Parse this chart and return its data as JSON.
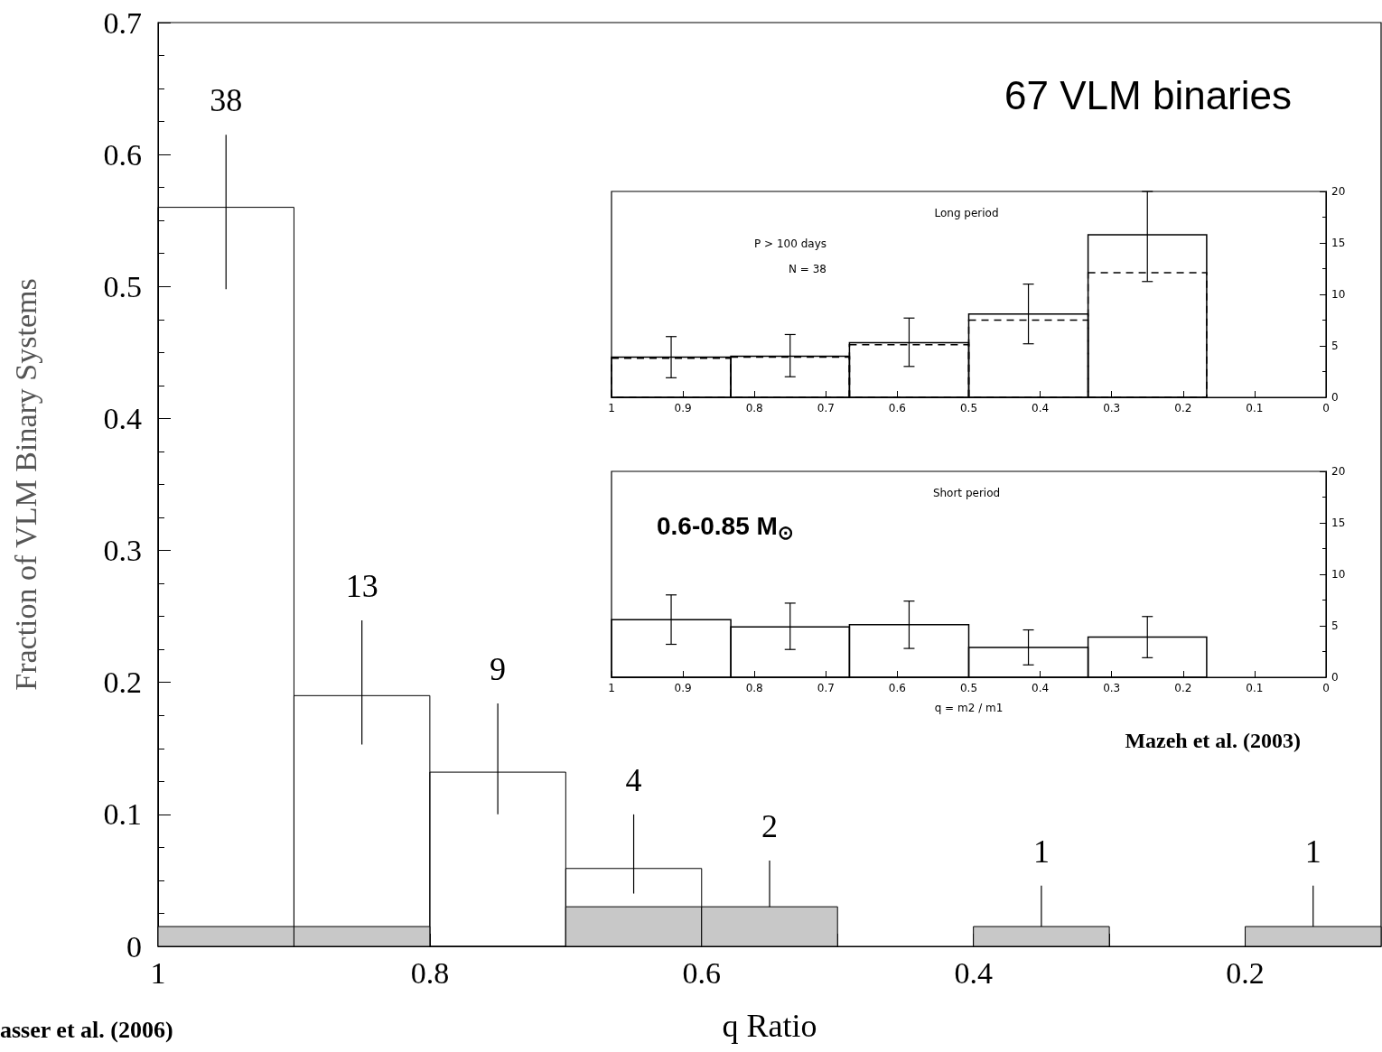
{
  "chart_data": [
    {
      "type": "histogram",
      "bins": [
        1,
        0.9,
        0.8,
        0.7,
        0.6,
        0.5,
        0.4,
        0.3,
        0.2,
        0.1
      ],
      "xlabel": "q Ratio",
      "ylabel": "Fraction of VLM Binary Systems",
      "xlim": [
        1,
        0.1
      ],
      "ylim": [
        0,
        0.7
      ],
      "xticks": [
        1,
        {
          "value": 0.9,
          "label": null
        },
        0.8,
        {
          "value": 0.7,
          "label": null
        },
        0.6,
        {
          "value": 0.5,
          "label": null
        },
        0.4,
        {
          "value": 0.3,
          "label": null
        },
        0.2
      ],
      "yticks": [
        0,
        0.1,
        0.2,
        0.3,
        0.4,
        0.5,
        0.6,
        0.7
      ],
      "annotations": [
        "67 VLM binaries",
        "asser et al. (2006)",
        {
          "text": "38",
          "x": 0.95,
          "y": 0.615
        },
        {
          "text": "13",
          "x": 0.85,
          "y": 0.247
        },
        {
          "text": "9",
          "x": 0.75,
          "y": 0.184
        },
        {
          "text": "4",
          "x": 0.65,
          "y": 0.1
        },
        {
          "text": "2",
          "x": 0.55,
          "y": 0.065
        },
        {
          "text": "1",
          "x": 0.35,
          "y": 0.046
        },
        {
          "text": "1",
          "x": 0.15,
          "y": 0.046
        }
      ],
      "series": [
        {
          "color": "#000000",
          "line_style": "solid",
          "values": [
            0.56,
            0.19,
            0.132,
            0.059,
            null,
            0,
            null,
            0,
            null
          ],
          "errors": [
            [
              0.498,
              0.615
            ],
            [
              0.153,
              0.247
            ],
            [
              0.1,
              0.184
            ],
            [
              0.04,
              0.1
            ],
            null,
            null,
            null,
            null,
            null
          ]
        },
        {
          "color": "#c8c8c8",
          "values": [
            0.015,
            0.015,
            0,
            0.03,
            0.03,
            0,
            0.015,
            0,
            0.015
          ],
          "errors": [
            null,
            null,
            null,
            null,
            [
              0.03,
              0.065
            ],
            null,
            [
              0.015,
              0.046
            ],
            null,
            [
              0.015,
              0.046
            ]
          ]
        }
      ]
    },
    {
      "type": "histogram",
      "title": "Long period",
      "bins": [
        1,
        0.833,
        0.667,
        0.5,
        0.333,
        0.167
      ],
      "xlim": [
        1,
        0
      ],
      "ylim": [
        0,
        20
      ],
      "xticks": [
        1,
        0.9,
        0.8,
        0.7,
        0.6,
        0.5,
        0.4,
        0.3,
        0.2,
        0.1,
        0
      ],
      "yticks": [
        0,
        5,
        10,
        15,
        20
      ],
      "annotations": [
        "P > 100 days",
        "N = 38"
      ],
      "series": [
        {
          "color": "#000000",
          "line_style": "solid",
          "values": [
            3.9,
            4.0,
            5.3,
            8.1,
            15.8
          ],
          "errors": [
            [
              1.9,
              5.9
            ],
            [
              2.0,
              6.1
            ],
            [
              3.0,
              7.7
            ],
            [
              5.2,
              11.0
            ],
            [
              11.25,
              20
            ]
          ]
        },
        {
          "color": "#000000",
          "line_style": "dashed",
          "values": [
            3.8,
            3.9,
            5.1,
            7.5,
            12.1
          ]
        }
      ]
    },
    {
      "type": "histogram",
      "title": "Short period",
      "xlabel": "q = m2 / m1",
      "bins": [
        1,
        0.833,
        0.667,
        0.5,
        0.333,
        0.167
      ],
      "xlim": [
        1,
        0
      ],
      "ylim": [
        0,
        20
      ],
      "xticks": [
        1,
        0.9,
        0.8,
        0.7,
        0.6,
        0.5,
        0.4,
        0.3,
        0.2,
        0.1,
        0
      ],
      "yticks": [
        0,
        5,
        10,
        15,
        20
      ],
      "annotations": [
        "0.6-0.85 M$_{⊙}$",
        "Mazeh et al. (2003)"
      ],
      "series": [
        {
          "color": "#000000",
          "line_style": "solid",
          "values": [
            5.6,
            4.9,
            5.1,
            2.9,
            3.9
          ],
          "errors": [
            [
              3.2,
              8.0
            ],
            [
              2.7,
              7.2
            ],
            [
              2.8,
              7.4
            ],
            [
              1.2,
              4.6
            ],
            [
              1.9,
              5.9
            ]
          ]
        }
      ]
    }
  ]
}
